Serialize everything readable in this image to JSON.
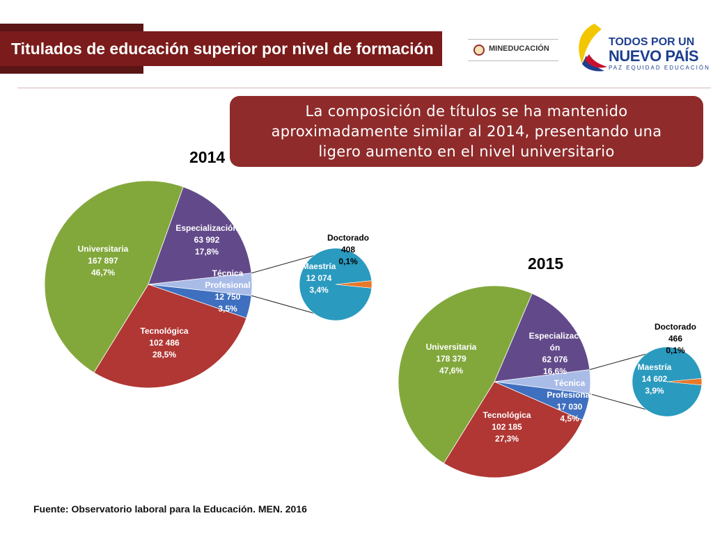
{
  "title": "Titulados de educación superior por nivel de formación",
  "logos": {
    "ministry": "MINEDUCACIÓN",
    "slogan_line1": "TODOS POR UN",
    "slogan_line2": "NUEVO PAÍS",
    "slogan_line3": "PAZ  EQUIDAD  EDUCACIÓN"
  },
  "note": {
    "lines": [
      "La composición de títulos se ha mantenido",
      "aproximadamente similar al 2014, presentando una",
      "ligero aumento en el nivel universitario"
    ]
  },
  "source": "Fuente: Observatorio laboral para la Educación. MEN. 2016",
  "colors": {
    "title_bg": "#7b1b1b",
    "note_bg": "#8f2b2b",
    "universitaria": "#82a83c",
    "tecnologica": "#b03734",
    "tecnica": "#3f6fbf",
    "especializacion": "#624a8a",
    "maestria": "#2a9abf",
    "doctorado": "#e8782a"
  },
  "chart_data": [
    {
      "type": "pie",
      "title": "2014",
      "slices": [
        {
          "key": "universitaria",
          "label": [
            "Universitaria",
            "167 897",
            "46,7%"
          ],
          "value": 167897,
          "percent": 46.7
        },
        {
          "key": "especializacion",
          "label": [
            "Especialización",
            "63 992",
            "17,8%"
          ],
          "value": 63992,
          "percent": 17.8
        },
        {
          "key": "otros",
          "label": [],
          "value": 12482,
          "percent": 3.5
        },
        {
          "key": "tecnica",
          "label": [
            "Técnica",
            "Profesional",
            "12 750",
            "3,5%"
          ],
          "value": 12750,
          "percent": 3.5
        },
        {
          "key": "tecnologica",
          "label": [
            "Tecnológica",
            "102 486",
            "28,5%"
          ],
          "value": 102486,
          "percent": 28.5
        }
      ],
      "sub_pie": [
        {
          "key": "maestria",
          "label": [
            "Maestría",
            "12 074",
            "3,4%"
          ],
          "value": 12074,
          "percent": 3.4
        },
        {
          "key": "doctorado",
          "label": [
            "Doctorado",
            "408",
            "0,1%"
          ],
          "value": 408,
          "percent": 0.1
        }
      ]
    },
    {
      "type": "pie",
      "title": "2015",
      "slices": [
        {
          "key": "universitaria",
          "label": [
            "Universitaria",
            "178 379",
            "47,6%"
          ],
          "value": 178379,
          "percent": 47.6
        },
        {
          "key": "especializacion",
          "label": [
            "Especializaci",
            "ón",
            "62 076",
            "16,6%"
          ],
          "value": 62076,
          "percent": 16.6
        },
        {
          "key": "otros",
          "label": [],
          "value": 15068,
          "percent": 4.0
        },
        {
          "key": "tecnica",
          "label": [
            "Técnica",
            "Profesional",
            "17 030",
            "4,5%"
          ],
          "value": 17030,
          "percent": 4.5
        },
        {
          "key": "tecnologica",
          "label": [
            "Tecnológica",
            "102 185",
            "27,3%"
          ],
          "value": 102185,
          "percent": 27.3
        }
      ],
      "sub_pie": [
        {
          "key": "maestria",
          "label": [
            "Maestría",
            "14 602",
            "3,9%"
          ],
          "value": 14602,
          "percent": 3.9
        },
        {
          "key": "doctorado",
          "label": [
            "Doctorado",
            "466",
            "0,1%"
          ],
          "value": 466,
          "percent": 0.1
        }
      ]
    }
  ]
}
